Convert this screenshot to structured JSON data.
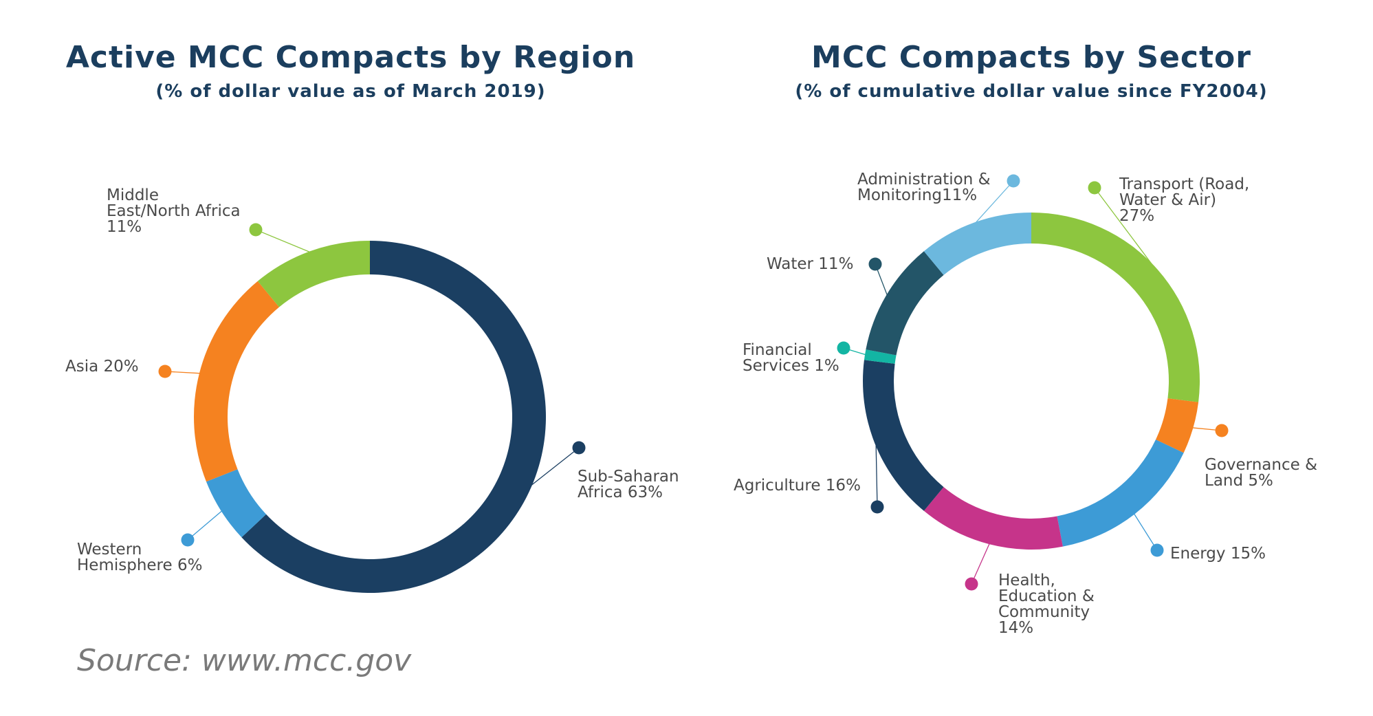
{
  "chart_data": [
    {
      "type": "pie",
      "title": "Active MCC Compacts by Region",
      "subtitle": "(% of dollar value as of March 2019)",
      "categories": [
        "Sub-Saharan Africa",
        "Western Hemisphere",
        "Asia",
        "Middle East/North Africa"
      ],
      "values": [
        63,
        6,
        20,
        11
      ],
      "colors": [
        "#1b3f62",
        "#3d9bd6",
        "#f58220",
        "#8dc63f"
      ],
      "labels": [
        [
          "Sub-Saharan",
          "Africa 63%"
        ],
        [
          "Western",
          "Hemisphere 6%"
        ],
        [
          "Asia 20%"
        ],
        [
          "Middle",
          "East/North Africa",
          "11%"
        ]
      ]
    },
    {
      "type": "pie",
      "title": "MCC Compacts by Sector",
      "subtitle": "(% of cumulative dollar value since FY2004)",
      "categories": [
        "Transport (Road, Water & Air)",
        "Governance & Land",
        "Energy",
        "Health, Education & Community",
        "Agriculture",
        "Financial Services",
        "Water",
        "Administration & Monitoring"
      ],
      "values": [
        27,
        5,
        15,
        14,
        16,
        1,
        11,
        11
      ],
      "colors": [
        "#8dc63f",
        "#f58220",
        "#3d9bd6",
        "#c6348a",
        "#1b3f62",
        "#13b5a3",
        "#235568",
        "#6cb8de"
      ],
      "labels": [
        [
          "Transport (Road,",
          "Water & Air)",
          "27%"
        ],
        [
          "Governance &",
          "Land 5%"
        ],
        [
          "Energy 15%"
        ],
        [
          "Health,",
          "Education &",
          "Community",
          "14%"
        ],
        [
          "Agriculture 16%"
        ],
        [
          "Financial",
          "Services 1%"
        ],
        [
          "Water 11%"
        ],
        [
          "Administration &",
          "Monitoring11%"
        ]
      ]
    }
  ],
  "source": "Source: www.mcc.gov"
}
